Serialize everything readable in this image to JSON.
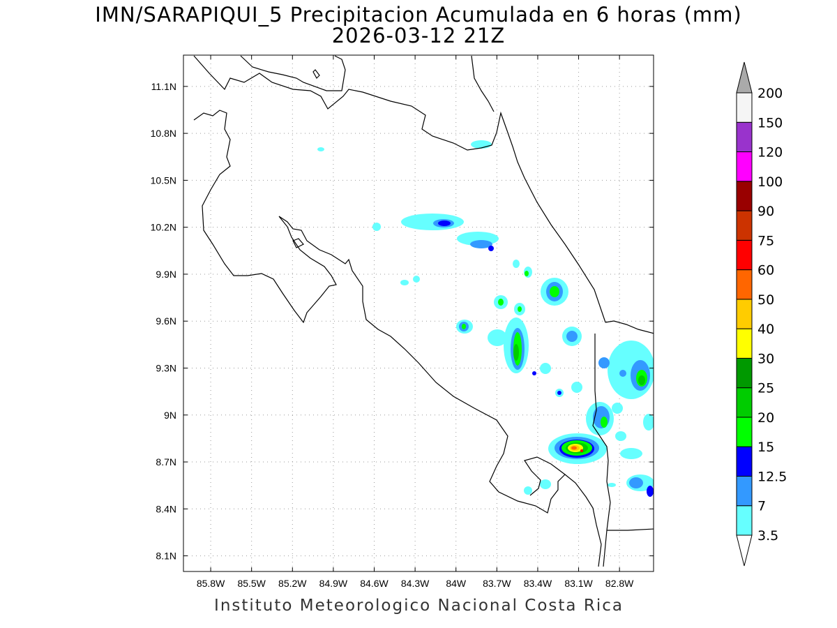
{
  "title": {
    "line1": "IMN/SARAPIQUI_5 Precipitacion Acumulada en 6 horas (mm)",
    "line2": "2026-03-12 21Z"
  },
  "footer": "Instituto Meteorologico Nacional Costa Rica",
  "map": {
    "lon_range": [
      -86.0,
      -82.55
    ],
    "lat_range": [
      8.0,
      11.3
    ],
    "lon_ticks": [
      {
        "value": -85.8,
        "label": "85.8W"
      },
      {
        "value": -85.5,
        "label": "85.5W"
      },
      {
        "value": -85.2,
        "label": "85.2W"
      },
      {
        "value": -84.9,
        "label": "84.9W"
      },
      {
        "value": -84.6,
        "label": "84.6W"
      },
      {
        "value": -84.3,
        "label": "84.3W"
      },
      {
        "value": -84.0,
        "label": "84W"
      },
      {
        "value": -83.7,
        "label": "83.7W"
      },
      {
        "value": -83.4,
        "label": "83.4W"
      },
      {
        "value": -83.1,
        "label": "83.1W"
      },
      {
        "value": -82.8,
        "label": "82.8W"
      }
    ],
    "lat_ticks": [
      {
        "value": 11.1,
        "label": "11.1N"
      },
      {
        "value": 10.8,
        "label": "10.8N"
      },
      {
        "value": 10.5,
        "label": "10.5N"
      },
      {
        "value": 10.2,
        "label": "10.2N"
      },
      {
        "value": 9.9,
        "label": "9.9N"
      },
      {
        "value": 9.6,
        "label": "9.6N"
      },
      {
        "value": 9.3,
        "label": "9.3N"
      },
      {
        "value": 9.0,
        "label": "9N"
      },
      {
        "value": 8.7,
        "label": "8.7N"
      },
      {
        "value": 8.4,
        "label": "8.4N"
      },
      {
        "value": 8.1,
        "label": "8.1N"
      }
    ],
    "grid": true
  },
  "colorbar": {
    "levels": [
      "3.5",
      "7",
      "12.5",
      "15",
      "20",
      "25",
      "30",
      "40",
      "50",
      "60",
      "75",
      "90",
      "100",
      "120",
      "150",
      "200"
    ],
    "colors": [
      "#66ffff",
      "#3399ff",
      "#0000ff",
      "#00ff00",
      "#00cc00",
      "#009900",
      "#ffff00",
      "#ffcc00",
      "#ff6600",
      "#ff0000",
      "#cc3300",
      "#990000",
      "#ff00ff",
      "#9933cc",
      "#f5f5f5"
    ],
    "overflow_color": "#aaaaaa"
  },
  "precip_cells": [
    {
      "lon": -83.55,
      "lat": 9.38,
      "mm": 22
    },
    {
      "lon": -83.75,
      "lat": 9.73,
      "mm": 20
    },
    {
      "lon": -83.92,
      "lat": 9.57,
      "mm": 20
    },
    {
      "lon": -83.28,
      "lat": 9.8,
      "mm": 22
    },
    {
      "lon": -84.0,
      "lat": 10.22,
      "mm": 12.5
    },
    {
      "lon": -83.06,
      "lat": 8.78,
      "mm": 50
    },
    {
      "lon": -82.65,
      "lat": 9.23,
      "mm": 22
    },
    {
      "lon": -82.92,
      "lat": 8.96,
      "mm": 20
    },
    {
      "lon": -82.62,
      "lat": 8.58,
      "mm": 20
    },
    {
      "lon": -83.2,
      "lat": 9.52,
      "mm": 12.5
    },
    {
      "lon": -83.44,
      "lat": 8.55,
      "mm": 15
    },
    {
      "lon": -83.69,
      "lat": 10.07,
      "mm": 12.5
    },
    {
      "lon": -83.43,
      "lat": 9.91,
      "mm": 15
    }
  ]
}
